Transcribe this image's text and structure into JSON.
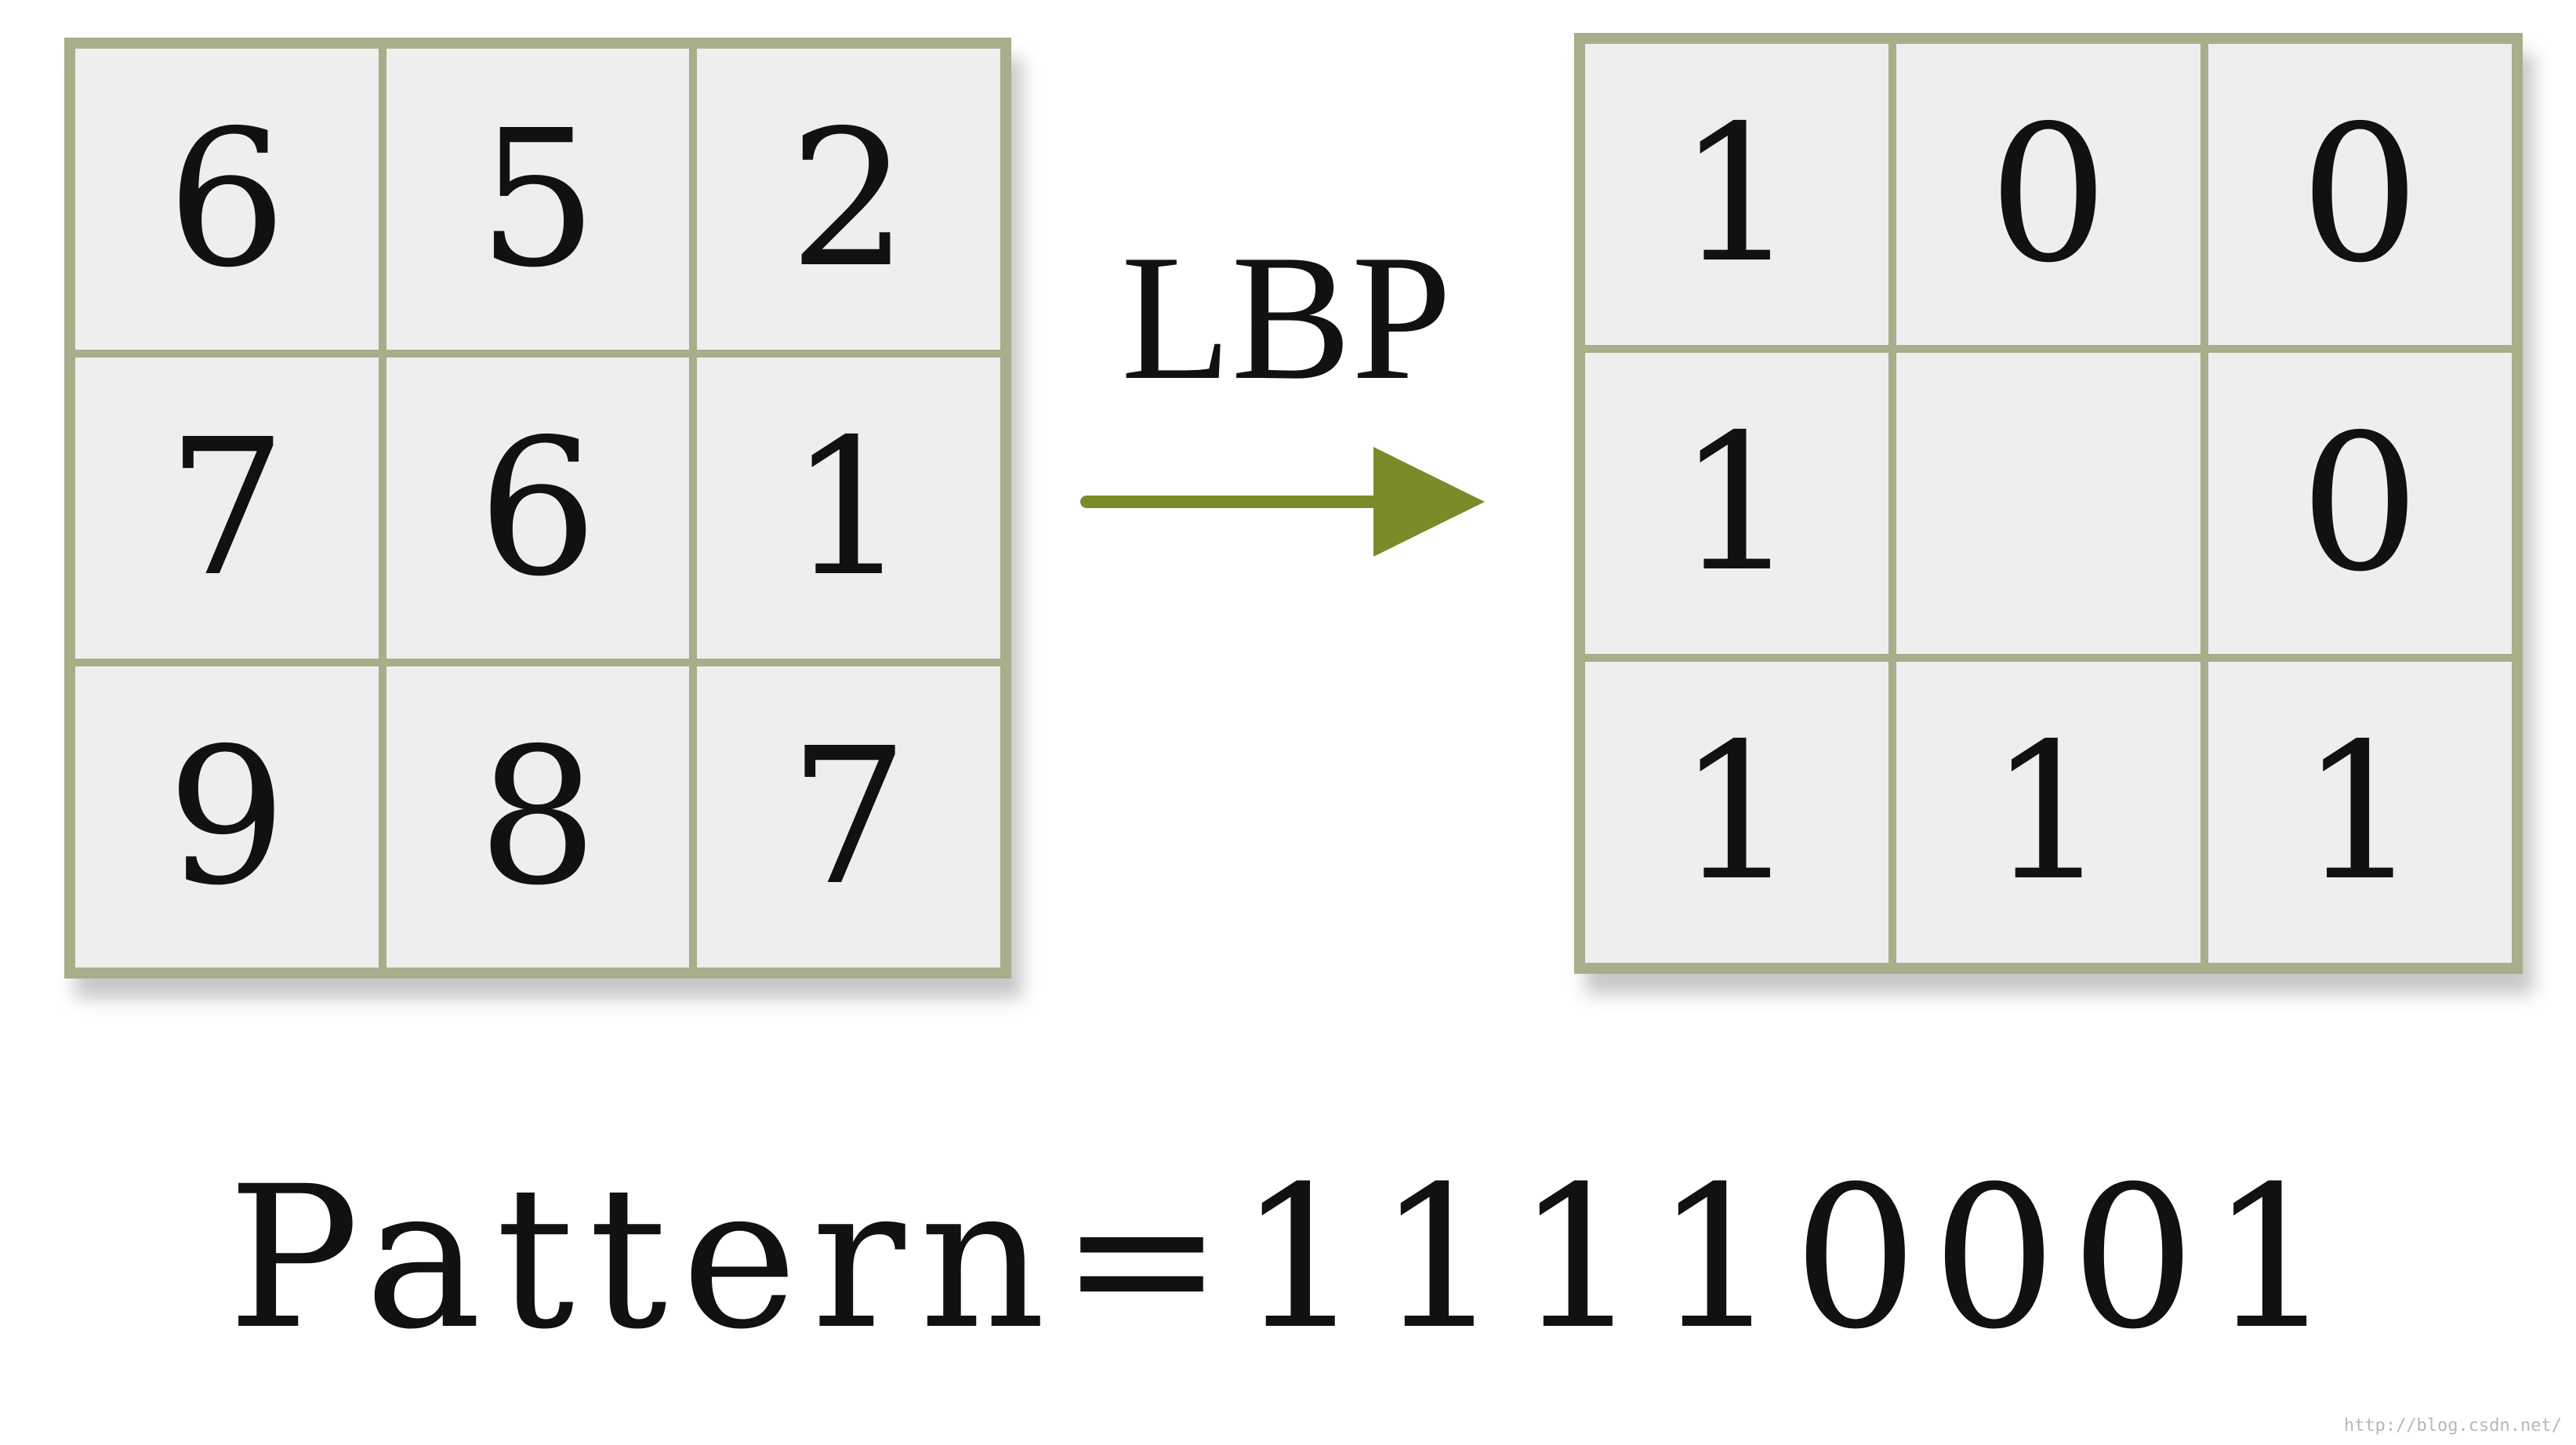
{
  "input_grid": {
    "cells": [
      "6",
      "5",
      "2",
      "7",
      "6",
      "1",
      "9",
      "8",
      "7"
    ]
  },
  "arrow": {
    "label": "LBP",
    "color": "#7a8c2a"
  },
  "output_grid": {
    "cells": [
      "1",
      "0",
      "0",
      "1",
      "",
      "0",
      "1",
      "1",
      "1"
    ]
  },
  "result": {
    "text": "Pattern=11110001"
  },
  "watermark": {
    "text": "http://blog.csdn.net/"
  },
  "colors": {
    "grid_border": "#a8ad8a",
    "cell_fill": "#eeeeee",
    "arrow": "#7a8c2a"
  }
}
